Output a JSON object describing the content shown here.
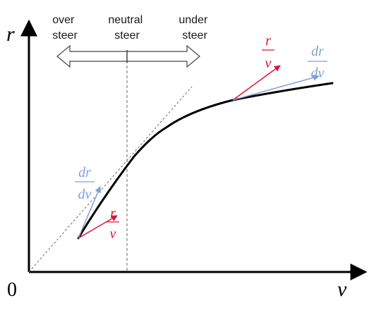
{
  "axes": {
    "y_label": "r",
    "x_label": "v",
    "origin_label": "0"
  },
  "regions": {
    "over": [
      "over",
      "steer"
    ],
    "neutral": [
      "neutral",
      "steer"
    ],
    "under": [
      "under",
      "steer"
    ]
  },
  "fractions": {
    "r_over_v": {
      "numerator": "r",
      "denominator": "v"
    },
    "dr_over_dv": {
      "numerator": "dr",
      "denominator": "dv"
    }
  },
  "colors": {
    "axis": "#000000",
    "curve": "#000000",
    "r_over_v": "#e0103a",
    "dr_over_dv": "#7f9fdc",
    "arrow_outline": "#444444",
    "guide_line": "#666666"
  }
}
